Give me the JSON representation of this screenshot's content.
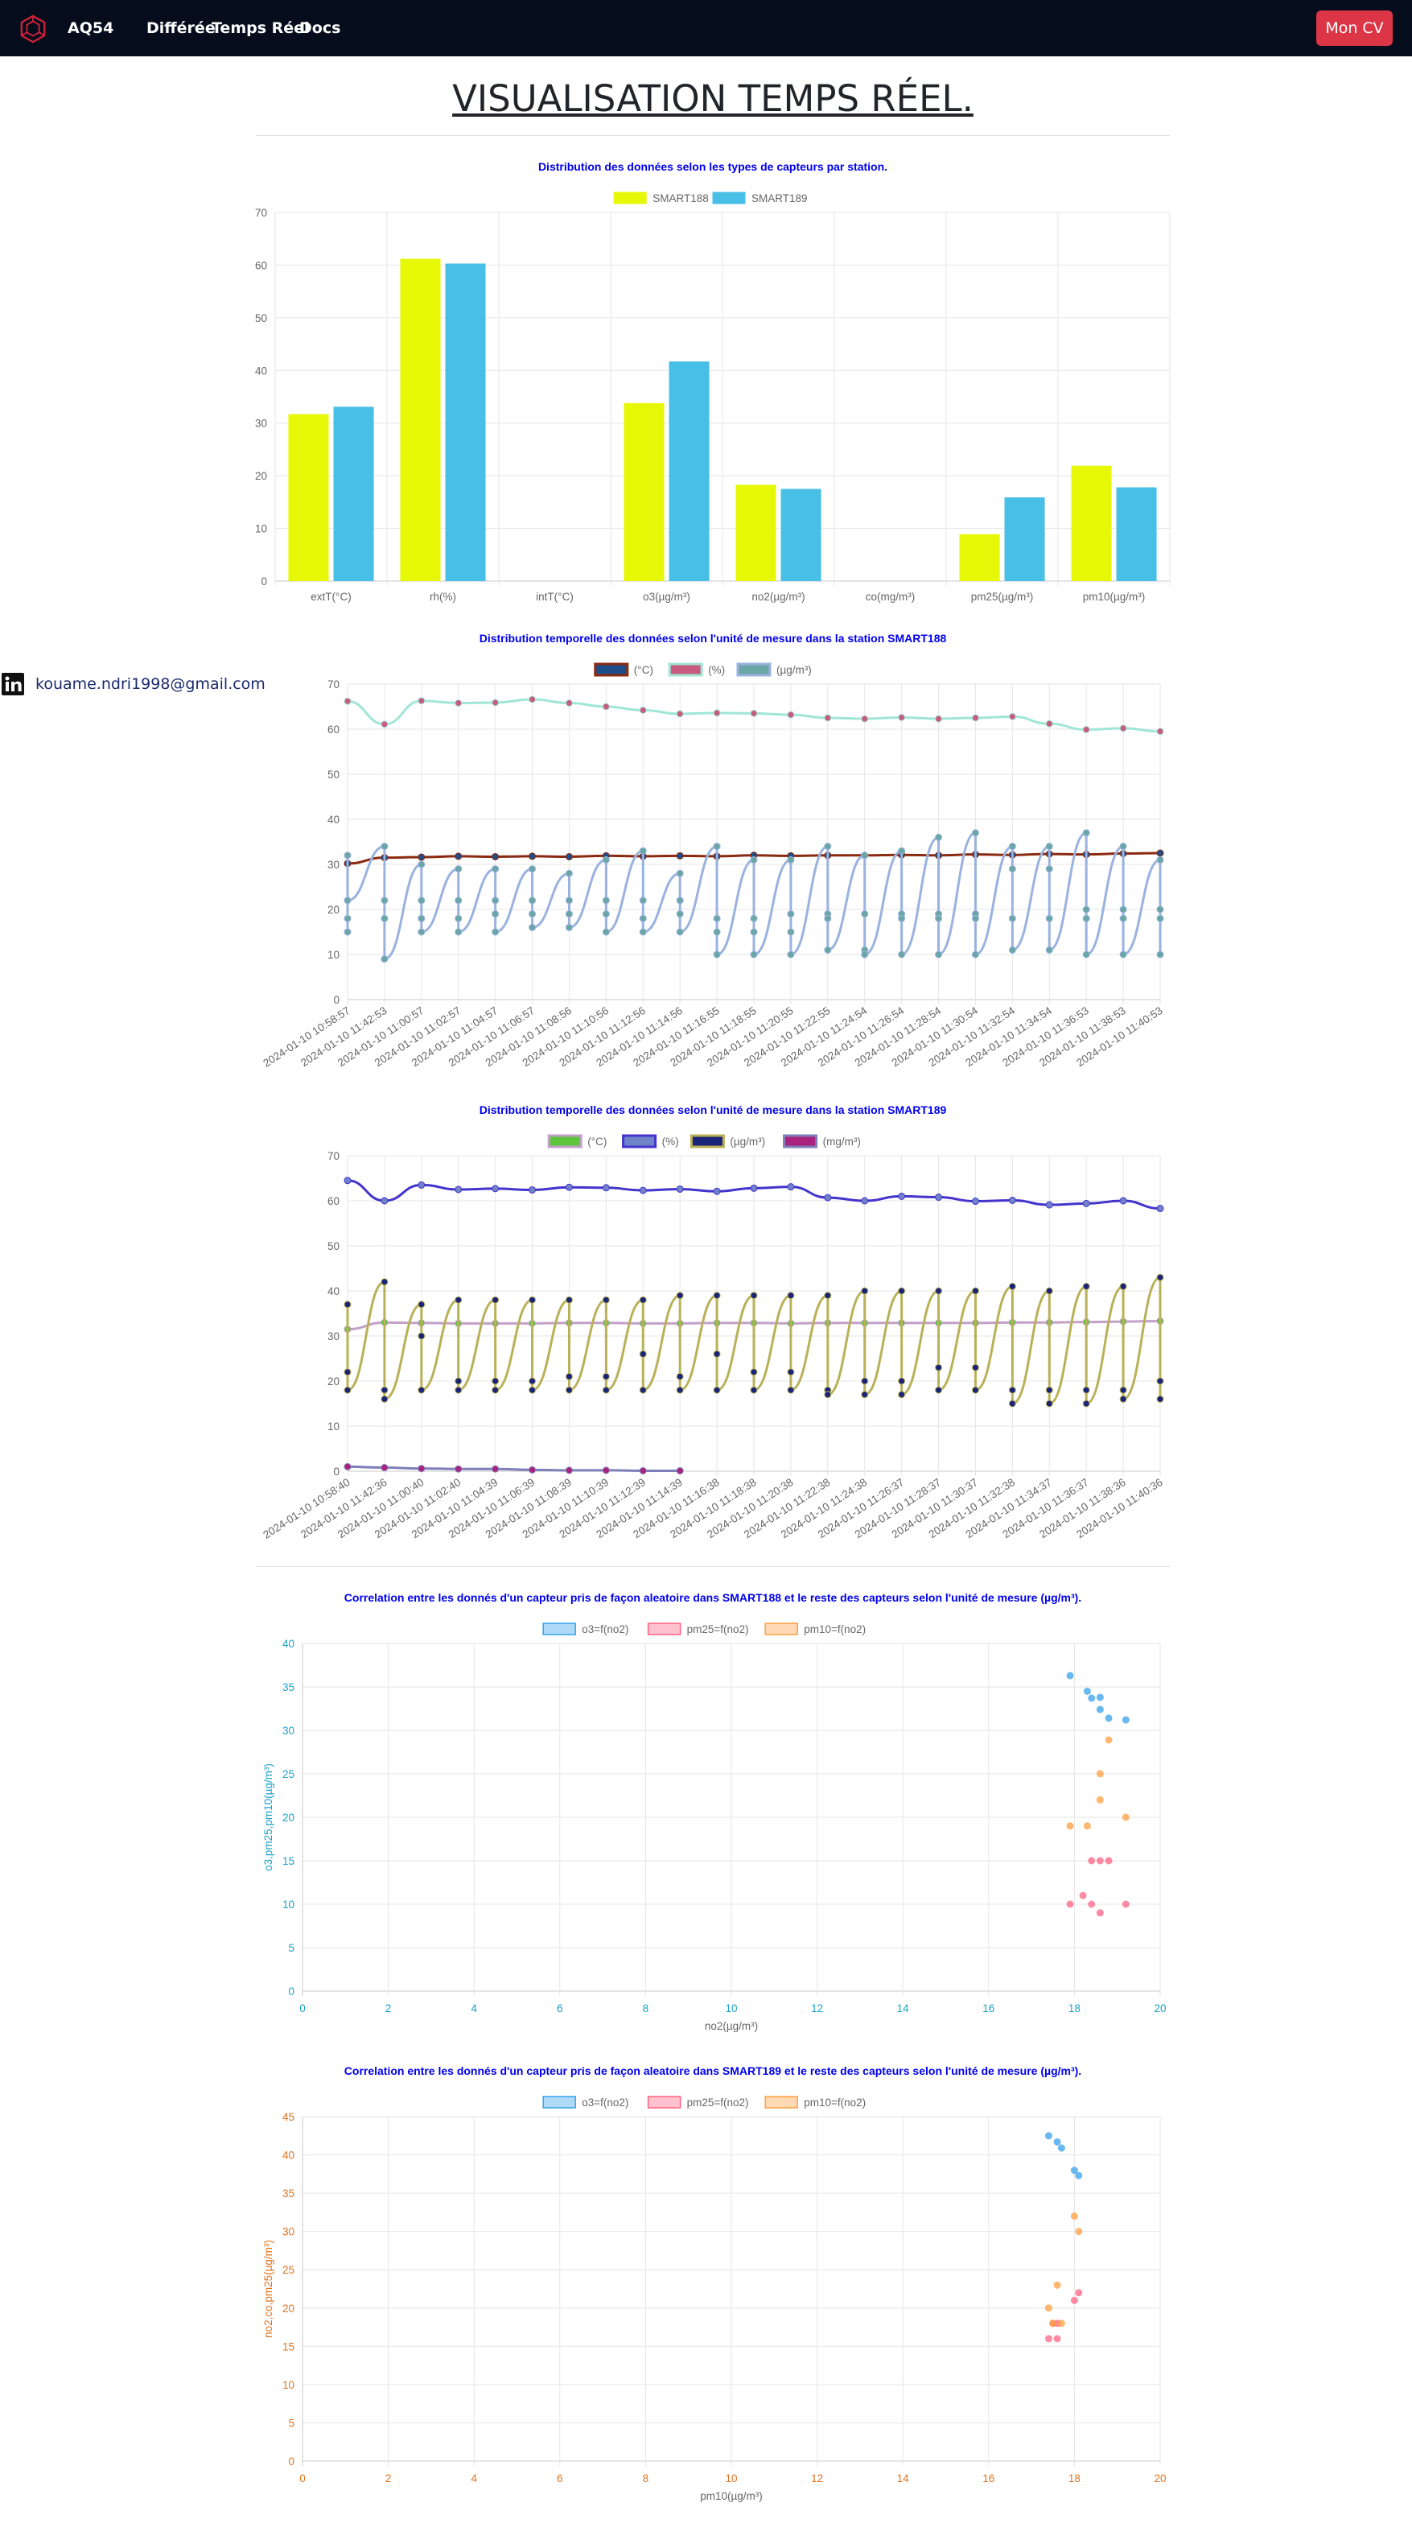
{
  "navbar": {
    "brand": "AQ54",
    "links": [
      "Différée",
      "Temps Réel",
      "Docs"
    ],
    "cv_button": "Mon CV"
  },
  "page": {
    "title": "VISUALISATION TEMPS RÉEL."
  },
  "sidebar": {
    "email": "kouame.ndri1998@gmail.com"
  },
  "colors": {
    "smart188": "#e6f806",
    "smart189": "#48bfe6",
    "navbar": "#050d1c",
    "cv_button": "#dc3545",
    "chart_title": "#0000ee"
  },
  "chart_data": [
    {
      "type": "bar",
      "title": "Distribution des données selon les types de capteurs par station.",
      "categories": [
        "extT(°C)",
        "rh(%)",
        "intT(°C)",
        "o3(µg/m³)",
        "no2(µg/m³)",
        "co(mg/m³)",
        "pm25(µg/m³)",
        "pm10(µg/m³)"
      ],
      "series": [
        {
          "name": "SMART188",
          "color": "#e6f806",
          "values": [
            31.7,
            61.2,
            0,
            33.8,
            18.3,
            0,
            8.9,
            21.9
          ]
        },
        {
          "name": "SMART189",
          "color": "#48bfe6",
          "values": [
            33.1,
            60.3,
            0,
            41.7,
            17.5,
            0,
            15.9,
            17.8
          ]
        }
      ],
      "ylim": [
        0,
        70
      ],
      "yticks": [
        0,
        10,
        20,
        30,
        40,
        50,
        60,
        70
      ],
      "grid": true,
      "legend": "top"
    },
    {
      "type": "line",
      "title": "Distribution temporelle des données selon l'unité de mesure dans la station SMART188",
      "x_tick_labels": [
        "2024-01-10 10:58:57",
        "2024-01-10 11:42:53",
        "2024-01-10 11:00:57",
        "2024-01-10 11:02:57",
        "2024-01-10 11:04:57",
        "2024-01-10 11:06:57",
        "2024-01-10 11:08:56",
        "2024-01-10 11:10:56",
        "2024-01-10 11:12:56",
        "2024-01-10 11:14:56",
        "2024-01-10 11:16:55",
        "2024-01-10 11:18:55",
        "2024-01-10 11:20:55",
        "2024-01-10 11:22:55",
        "2024-01-10 11:24:54",
        "2024-01-10 11:26:54",
        "2024-01-10 11:28:54",
        "2024-01-10 11:30:54",
        "2024-01-10 11:32:54",
        "2024-01-10 11:34:54",
        "2024-01-10 11:36:53",
        "2024-01-10 11:38:53",
        "2024-01-10 11:40:53"
      ],
      "series": [
        {
          "name": "(°C)",
          "color": "#8b2a10",
          "fill": "#1d4e89",
          "values": [
            30.2,
            31.5,
            31.6,
            31.8,
            31.7,
            31.8,
            31.7,
            31.9,
            31.8,
            31.9,
            31.8,
            32.0,
            31.9,
            32.0,
            32.0,
            32.1,
            32.0,
            32.2,
            32.1,
            32.3,
            32.2,
            32.4,
            32.5
          ]
        },
        {
          "name": "(%)",
          "color": "#a0e6d6",
          "fill": "#c85c7e",
          "values": [
            66.2,
            61.1,
            66.3,
            65.8,
            65.9,
            66.6,
            65.8,
            65.0,
            64.2,
            63.4,
            63.6,
            63.5,
            63.2,
            62.5,
            62.3,
            62.6,
            62.3,
            62.5,
            62.8,
            61.2,
            59.9,
            60.2,
            59.5
          ]
        },
        {
          "name": "(µg/m³)",
          "color": "#99b2df",
          "fill": "#6aa6a6",
          "values": [
            [
              32.0,
              18.0,
              15.0,
              22.0
            ],
            [
              34.0,
              22.0,
              18.0,
              9.0
            ],
            [
              30.0,
              22.0,
              18.0,
              15.0
            ],
            [
              29.0,
              22.0,
              18.0,
              15.0
            ],
            [
              29.0,
              22.0,
              19.0,
              15.0
            ],
            [
              29.0,
              22.0,
              19.0,
              16.0
            ],
            [
              28.0,
              22.0,
              19.0,
              16.0
            ],
            [
              31.0,
              22.0,
              19.0,
              15.0
            ],
            [
              33.0,
              22.0,
              18.0,
              15.0
            ],
            [
              28.0,
              22.0,
              19.0,
              15.0
            ],
            [
              34.0,
              18.0,
              15.0,
              10.0
            ],
            [
              31.0,
              18.0,
              15.0,
              10.0
            ],
            [
              31.0,
              19.0,
              15.0,
              10.0
            ],
            [
              34.0,
              19.0,
              18.0,
              11.0
            ],
            [
              32.0,
              19.0,
              11.0,
              10.0
            ],
            [
              33.0,
              19.0,
              18.0,
              10.0
            ],
            [
              36.0,
              19.0,
              18.0,
              10.0
            ],
            [
              37.0,
              19.0,
              18.0,
              10.0
            ],
            [
              34.0,
              29.0,
              18.0,
              11.0
            ],
            [
              34.0,
              29.0,
              18.0,
              11.0
            ],
            [
              37.0,
              20.0,
              18.0,
              10.0
            ],
            [
              34.0,
              20.0,
              18.0,
              10.0
            ],
            [
              31.0,
              20.0,
              18.0,
              10.0
            ]
          ]
        }
      ],
      "ylim": [
        0,
        70
      ],
      "yticks": [
        0,
        10,
        20,
        30,
        40,
        50,
        60,
        70
      ],
      "grid": true,
      "legend": "top"
    },
    {
      "type": "line",
      "title": "Distribution temporelle des données selon l'unité de mesure dans la station SMART189",
      "x_tick_labels": [
        "2024-01-10 10:58:40",
        "2024-01-10 11:42:36",
        "2024-01-10 11:00:40",
        "2024-01-10 11:02:40",
        "2024-01-10 11:04:39",
        "2024-01-10 11:06:39",
        "2024-01-10 11:08:39",
        "2024-01-10 11:10:39",
        "2024-01-10 11:12:39",
        "2024-01-10 11:14:39",
        "2024-01-10 11:16:38",
        "2024-01-10 11:18:38",
        "2024-01-10 11:20:38",
        "2024-01-10 11:22:38",
        "2024-01-10 11:24:38",
        "2024-01-10 11:26:37",
        "2024-01-10 11:28:37",
        "2024-01-10 11:30:37",
        "2024-01-10 11:32:38",
        "2024-01-10 11:34:37",
        "2024-01-10 11:36:37",
        "2024-01-10 11:38:36",
        "2024-01-10 11:40:36"
      ],
      "series": [
        {
          "name": "(°C)",
          "color": "#c3a0c8",
          "fill": "#5ec43b",
          "values": [
            31.5,
            33.0,
            32.9,
            32.8,
            32.8,
            32.8,
            32.9,
            32.9,
            32.8,
            32.8,
            32.9,
            32.9,
            32.8,
            32.9,
            32.9,
            32.9,
            32.9,
            32.9,
            33.0,
            33.0,
            33.1,
            33.2,
            33.3
          ]
        },
        {
          "name": "(%)",
          "color": "#4433cc",
          "fill": "#6f83c8",
          "values": [
            64.5,
            60.0,
            63.5,
            62.5,
            62.7,
            62.4,
            63.0,
            62.9,
            62.3,
            62.6,
            62.1,
            62.8,
            63.1,
            60.7,
            60.0,
            61.0,
            60.8,
            59.9,
            60.1,
            59.1,
            59.4,
            60.0,
            58.3
          ]
        },
        {
          "name": "(µg/m³)",
          "color": "#b9b157",
          "fill": "#1a2478",
          "values": [
            [
              37.0,
              22.0,
              18.0
            ],
            [
              42.0,
              18.0,
              16.0
            ],
            [
              37.0,
              30.0,
              18.0
            ],
            [
              38.0,
              20.0,
              18.0
            ],
            [
              38.0,
              20.0,
              18.0
            ],
            [
              38.0,
              20.0,
              18.0
            ],
            [
              38.0,
              21.0,
              18.0
            ],
            [
              38.0,
              21.0,
              18.0
            ],
            [
              38.0,
              26.0,
              18.0
            ],
            [
              39.0,
              21.0,
              18.0
            ],
            [
              39.0,
              26.0,
              18.0
            ],
            [
              39.0,
              22.0,
              18.0
            ],
            [
              39.0,
              22.0,
              18.0
            ],
            [
              39.0,
              18.0,
              17.0
            ],
            [
              40.0,
              20.0,
              17.0
            ],
            [
              40.0,
              20.0,
              17.0
            ],
            [
              40.0,
              23.0,
              18.0
            ],
            [
              40.0,
              23.0,
              18.0
            ],
            [
              41.0,
              18.0,
              15.0
            ],
            [
              40.0,
              18.0,
              15.0
            ],
            [
              41.0,
              18.0,
              15.0
            ],
            [
              41.0,
              18.0,
              16.0
            ],
            [
              43.0,
              20.0,
              16.0
            ]
          ]
        },
        {
          "name": "(mg/m³)",
          "color": "#7e7eb8",
          "fill": "#a9237e",
          "values": [
            1.0,
            0.8,
            0.6,
            0.5,
            0.5,
            0.3,
            0.2,
            0.2,
            0.1,
            0.1
          ]
        }
      ],
      "ylim": [
        0,
        70
      ],
      "yticks": [
        0,
        10,
        20,
        30,
        40,
        50,
        60,
        70
      ],
      "grid": true,
      "legend": "top"
    },
    {
      "type": "scatter",
      "title": "Correlation entre les donnés d'un capteur pris de façon aleatoire dans SMART188 et le reste des capteurs selon l'unité de mesure (µg/m³).",
      "xlabel": "no2(µg/m³)",
      "ylabel": "o3,pm25,pm10(µg/m³)",
      "xlim": [
        0,
        20
      ],
      "xticks": [
        0,
        2,
        4,
        6,
        8,
        10,
        12,
        14,
        16,
        18,
        20
      ],
      "ylim": [
        0,
        40
      ],
      "yticks": [
        0,
        5,
        10,
        15,
        20,
        25,
        30,
        35,
        40
      ],
      "series": [
        {
          "name": "o3=f(no2)",
          "color": "#36a2eb",
          "points": [
            [
              17.9,
              36.3
            ],
            [
              18.3,
              34.5
            ],
            [
              18.4,
              33.7
            ],
            [
              18.6,
              33.8
            ],
            [
              18.6,
              32.4
            ],
            [
              18.8,
              31.4
            ],
            [
              19.2,
              31.2
            ]
          ]
        },
        {
          "name": "pm25=f(no2)",
          "color": "#ff6384",
          "points": [
            [
              18.4,
              15.0
            ],
            [
              18.6,
              15.0
            ],
            [
              18.8,
              15.0
            ],
            [
              18.2,
              11.0
            ],
            [
              17.9,
              10.0
            ],
            [
              18.4,
              10.0
            ],
            [
              19.2,
              10.0
            ],
            [
              18.6,
              9.0
            ]
          ]
        },
        {
          "name": "pm10=f(no2)",
          "color": "#ff9f40",
          "points": [
            [
              18.8,
              28.9
            ],
            [
              18.6,
              25.0
            ],
            [
              18.6,
              22.0
            ],
            [
              19.2,
              20.0
            ],
            [
              17.9,
              19.0
            ],
            [
              18.3,
              19.0
            ]
          ]
        }
      ],
      "grid": true,
      "legend": "top"
    },
    {
      "type": "scatter",
      "title": "Correlation entre les donnés d'un capteur pris de façon aleatoire dans SMART189 et le reste des capteurs selon l'unité de mesure (µg/m³).",
      "xlabel": "pm10(µg/m³)",
      "ylabel": "no2,co,pm25(µg/m³)",
      "xlim": [
        0,
        20
      ],
      "xticks": [
        0,
        2,
        4,
        6,
        8,
        10,
        12,
        14,
        16,
        18,
        20
      ],
      "ylim": [
        0,
        45
      ],
      "yticks": [
        0,
        5,
        10,
        15,
        20,
        25,
        30,
        35,
        40,
        45
      ],
      "series": [
        {
          "name": "o3=f(no2)",
          "color": "#36a2eb",
          "points": [
            [
              17.4,
              42.5
            ],
            [
              17.6,
              41.7
            ],
            [
              17.7,
              40.9
            ],
            [
              18.0,
              38.0
            ],
            [
              18.1,
              37.3
            ]
          ]
        },
        {
          "name": "pm25=f(no2)",
          "color": "#ff6384",
          "points": [
            [
              18.1,
              22.0
            ],
            [
              18.0,
              21.0
            ],
            [
              17.5,
              18.0
            ],
            [
              17.6,
              18.0
            ],
            [
              17.4,
              16.0
            ],
            [
              17.6,
              16.0
            ]
          ]
        },
        {
          "name": "pm10=f(no2)",
          "color": "#ff9f40",
          "points": [
            [
              18.0,
              32.0
            ],
            [
              18.1,
              30.0
            ],
            [
              17.6,
              23.0
            ],
            [
              17.4,
              20.0
            ],
            [
              17.5,
              18.0
            ],
            [
              17.7,
              18.0
            ]
          ]
        }
      ],
      "grid": true,
      "legend": "top"
    }
  ]
}
